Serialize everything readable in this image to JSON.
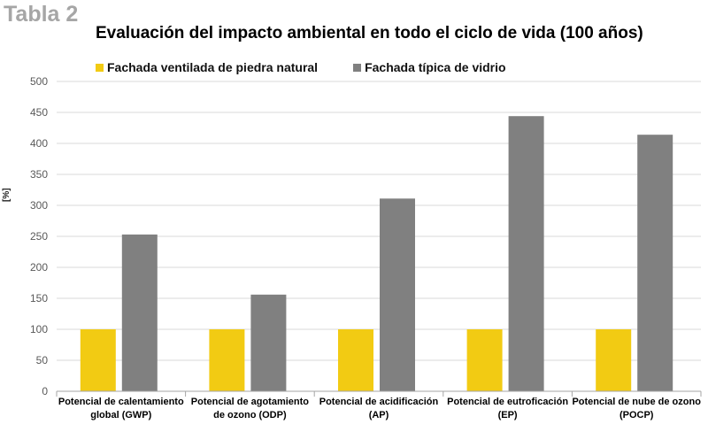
{
  "header": {
    "table_label": "Tabla 2"
  },
  "chart_data": {
    "type": "bar",
    "title": "Evaluación del impacto ambiental en todo el ciclo de vida (100 años)",
    "xlabel": "",
    "ylabel": "[%]",
    "ylim": [
      0,
      500
    ],
    "yticks": [
      0,
      50,
      100,
      150,
      200,
      250,
      300,
      350,
      400,
      450,
      500
    ],
    "grid": true,
    "legend_position": "top",
    "categories": [
      [
        "Potencial de calentamiento",
        "global (GWP)"
      ],
      [
        "Potencial de agotamiento",
        "de ozono (ODP)"
      ],
      [
        "Potencial de acidificación",
        "(AP)"
      ],
      [
        "Potencial de eutroficación",
        "(EP)"
      ],
      [
        "Potencial de nube de ozono",
        "(POCP)"
      ]
    ],
    "series": [
      {
        "name": "Fachada ventilada de piedra natural",
        "color": "#f2cb13",
        "values": [
          100,
          100,
          100,
          100,
          100
        ]
      },
      {
        "name": "Fachada típica de vidrio",
        "color": "#808080",
        "values": [
          253,
          156,
          311,
          444,
          414
        ]
      }
    ]
  }
}
